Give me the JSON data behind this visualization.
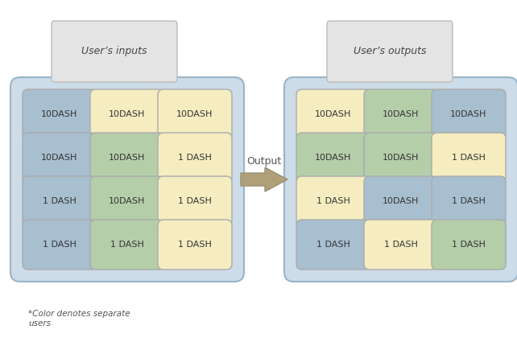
{
  "user_inputs_label": "User’s inputs",
  "user_outputs_label": "User’s outputs",
  "arrow_label": "Output",
  "footnote": "*Color denotes separate\nusers",
  "colors": {
    "blue": "#a8bfd0",
    "yellow": "#f5edc0",
    "green": "#b5ceaa",
    "box_bg": "#e4e4e4",
    "arrow_fill": "#b0a07a",
    "arrow_edge": "#999070",
    "white": "#ffffff",
    "outer_fill": "#ccdce8",
    "outer_edge": "#9ab4c8"
  },
  "left_grid": [
    [
      "blue",
      "yellow",
      "yellow"
    ],
    [
      "blue",
      "green",
      "yellow"
    ],
    [
      "blue",
      "green",
      "yellow"
    ],
    [
      "blue",
      "green",
      "yellow"
    ]
  ],
  "left_labels": [
    [
      "10DASH",
      "10DASH",
      "10DASH"
    ],
    [
      "10DASH",
      "10DASH",
      "1 DASH"
    ],
    [
      "1 DASH",
      "10DASH",
      "1 DASH"
    ],
    [
      "1 DASH",
      "1 DASH",
      "1 DASH"
    ]
  ],
  "right_grid": [
    [
      "yellow",
      "green",
      "blue"
    ],
    [
      "green",
      "green",
      "yellow"
    ],
    [
      "yellow",
      "blue",
      "blue"
    ],
    [
      "blue",
      "yellow",
      "green"
    ]
  ],
  "right_labels": [
    [
      "10DASH",
      "10DASH",
      "10DASH"
    ],
    [
      "10DASH",
      "10DASH",
      "1 DASH"
    ],
    [
      "1 DASH",
      "10DASH",
      "1 DASH"
    ],
    [
      "1 DASH",
      "1 DASH",
      "1 DASH"
    ]
  ],
  "fig_width": 6.42,
  "fig_height": 4.3,
  "dpi": 100
}
